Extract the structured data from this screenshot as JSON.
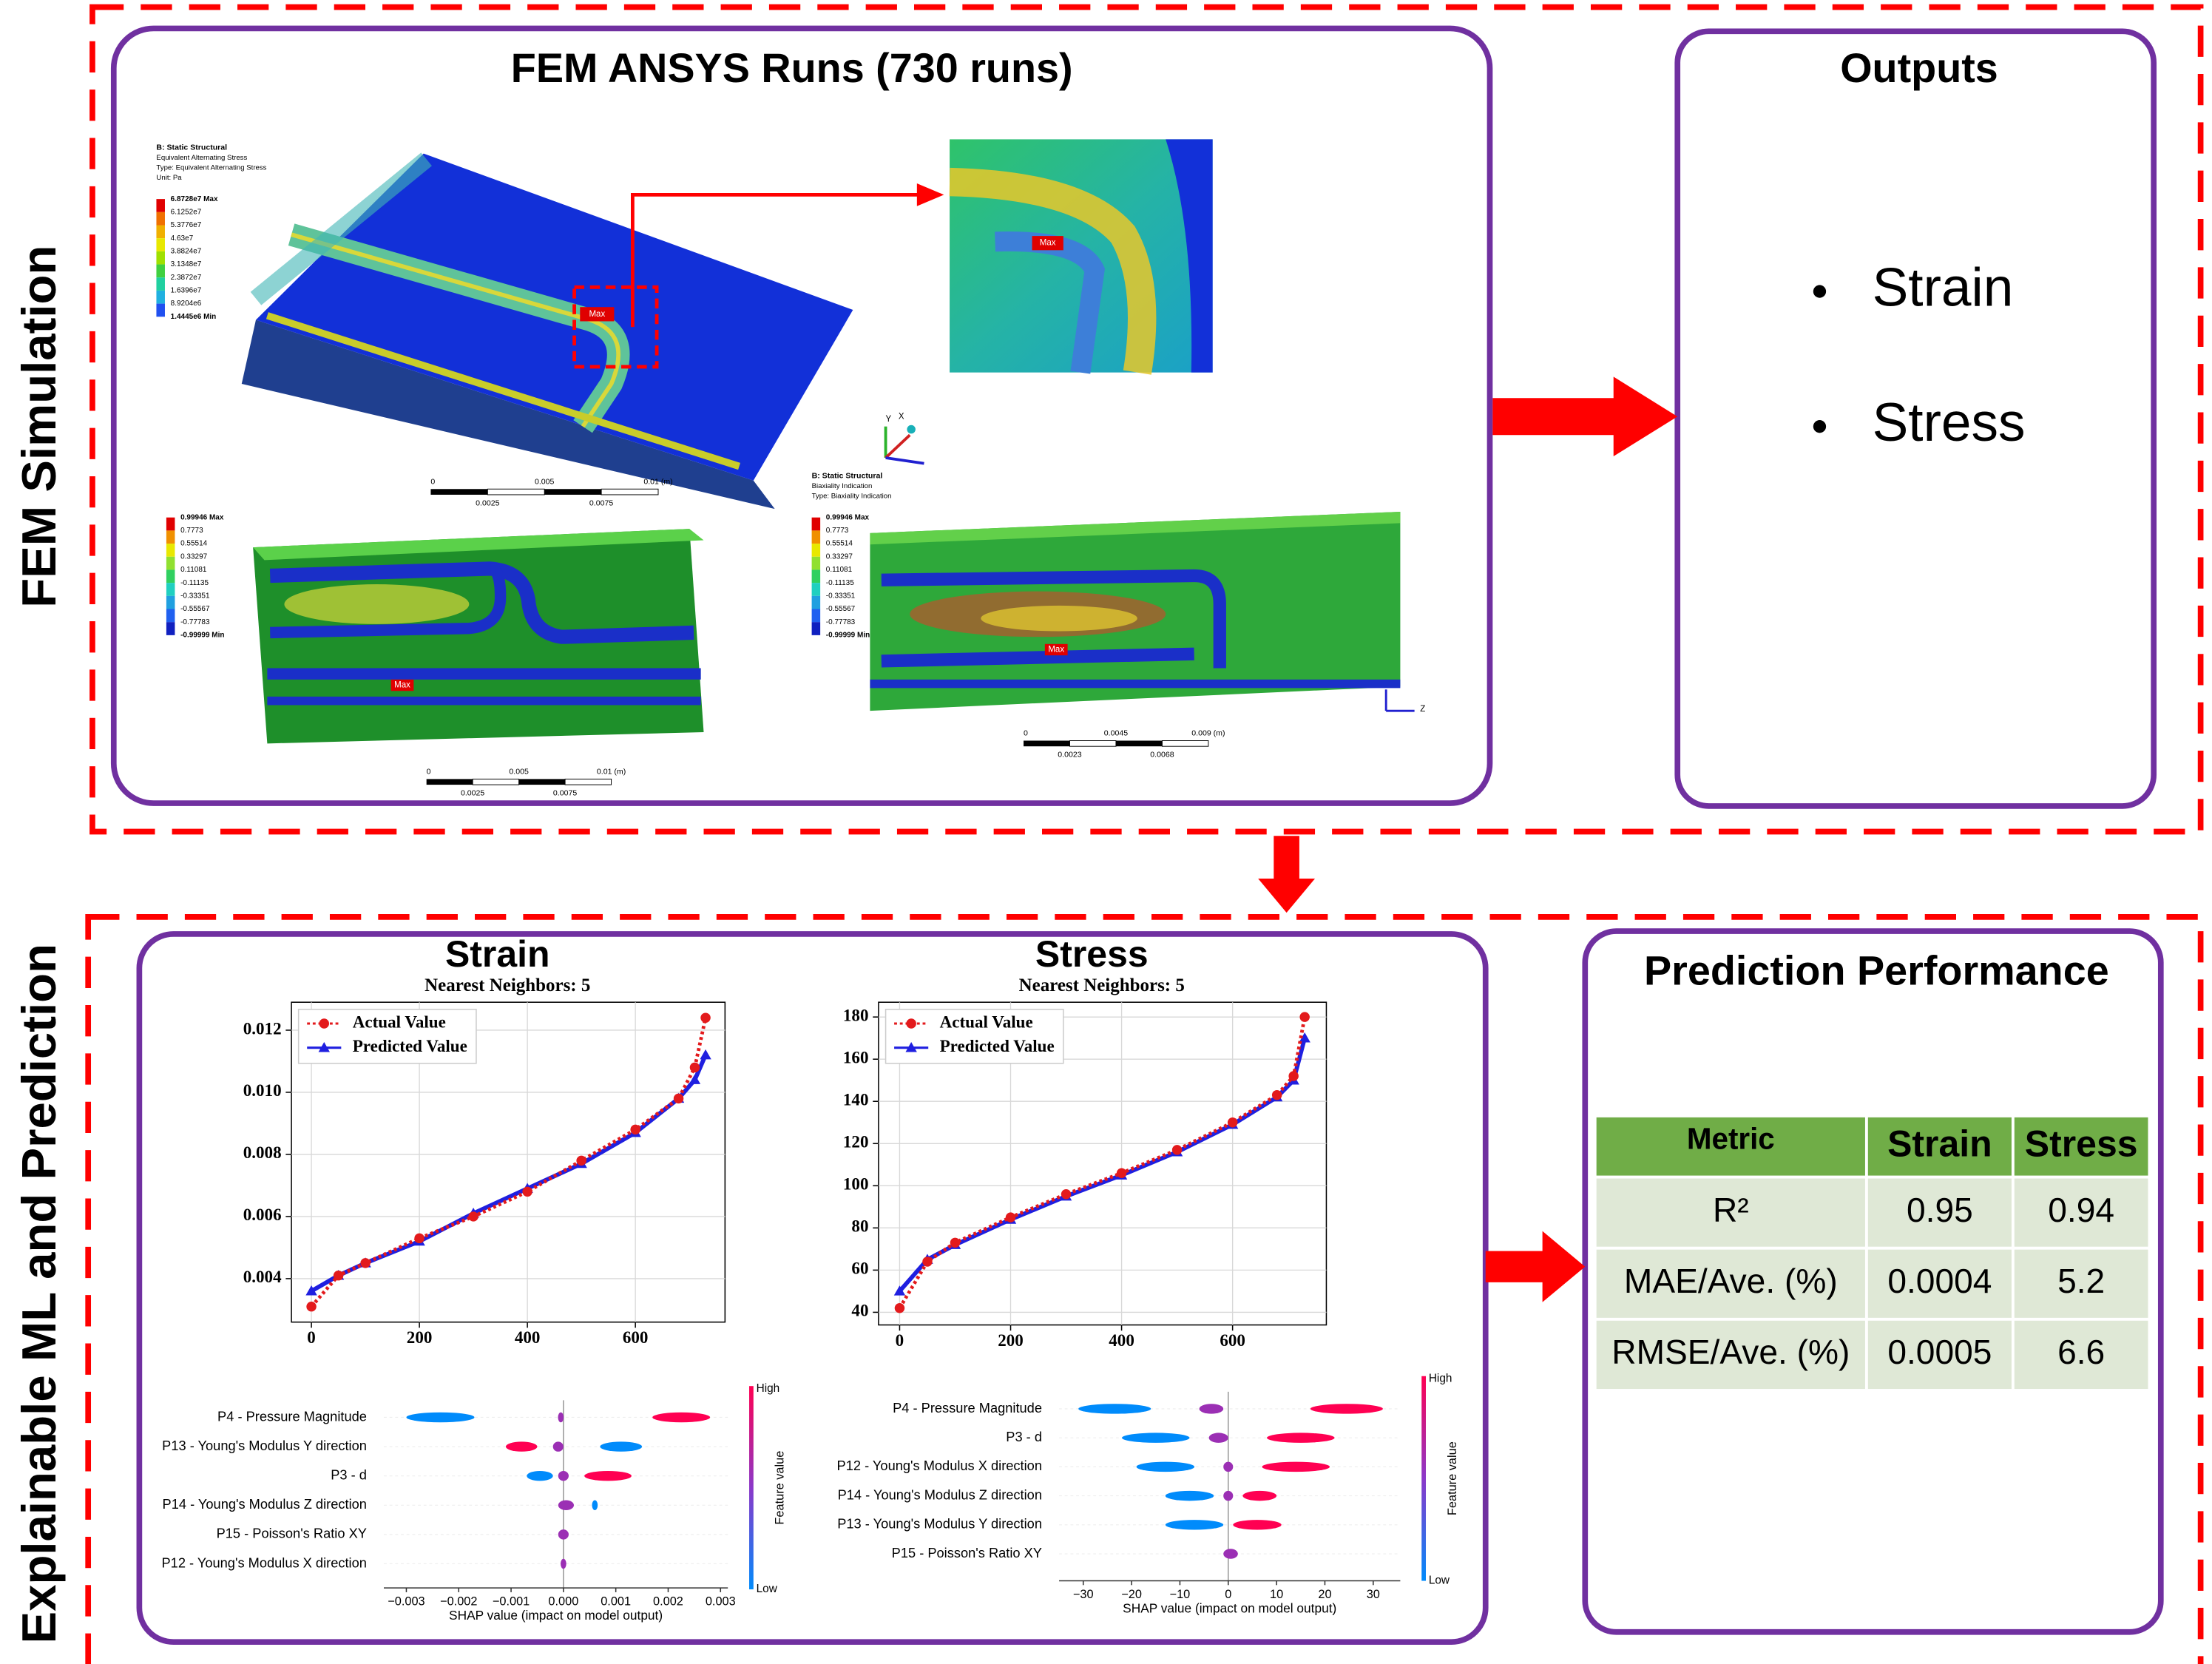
{
  "side_labels": [
    "FEM Simulation",
    "Explainable ML and Prediction"
  ],
  "fem": {
    "title": "FEM ANSYS Runs (730 runs)",
    "max_label": "Max",
    "stress_view": {
      "header": [
        "B: Static Structural",
        "Equivalent Alternating Stress",
        "Type: Equivalent Alternating Stress",
        "Unit: Pa"
      ],
      "legend": [
        "6.8728e7 Max",
        "6.1252e7",
        "5.3776e7",
        "4.63e7",
        "3.8824e7",
        "3.1348e7",
        "2.3872e7",
        "1.6396e7",
        "8.9204e6",
        "1.4445e6 Min"
      ],
      "scale": [
        "0",
        "0.005",
        "0.01 (m)",
        "0.0025",
        "0.0075"
      ]
    },
    "biaxiality_left": {
      "legend": [
        "0.99946 Max",
        "0.7773",
        "0.55514",
        "0.33297",
        "0.11081",
        "-0.11135",
        "-0.33351",
        "-0.55567",
        "-0.77783",
        "-0.99999 Min"
      ],
      "scale": [
        "0",
        "0.005",
        "0.01 (m)",
        "0.0025",
        "0.0075"
      ]
    },
    "biaxiality_right": {
      "header": [
        "B: Static Structural",
        "Biaxiality Indication",
        "Type: Biaxiality Indication"
      ],
      "legend": [
        "0.99946 Max",
        "0.7773",
        "0.55514",
        "0.33297",
        "0.11081",
        "-0.11135",
        "-0.33351",
        "-0.55567",
        "-0.77783",
        "-0.99999 Min"
      ],
      "scale": [
        "0",
        "0.0045",
        "0.009 (m)",
        "0.0023",
        "0.0068"
      ]
    },
    "triad": [
      "Y",
      "X",
      "Z"
    ]
  },
  "outputs": {
    "title": "Outputs",
    "items": [
      "Strain",
      "Stress"
    ]
  },
  "charts": [
    {
      "type": "line",
      "title": "Strain",
      "subtitle": "Nearest Neighbors: 5",
      "x": [
        0,
        50,
        100,
        200,
        300,
        400,
        500,
        600,
        680,
        710,
        730
      ],
      "series": [
        {
          "name": "Actual Value",
          "color": "#e31a1c",
          "values": [
            0.0031,
            0.0041,
            0.0045,
            0.0053,
            0.006,
            0.0068,
            0.0078,
            0.0088,
            0.0098,
            0.0108,
            0.0124
          ]
        },
        {
          "name": "Predicted Value",
          "color": "#1f1fe0",
          "values": [
            0.0036,
            0.0041,
            0.0045,
            0.0052,
            0.0061,
            0.0069,
            0.0077,
            0.0087,
            0.0098,
            0.0104,
            0.0112
          ]
        }
      ],
      "xlim": [
        -37,
        766
      ],
      "xticks": [
        0,
        200,
        400,
        600
      ],
      "ylim": [
        0.0026,
        0.0129
      ],
      "yticks": [
        0.004,
        0.006,
        0.008,
        {
          "value": 0.01,
          "label": "0.010"
        },
        0.012
      ],
      "grid": true,
      "legend": "upper left"
    },
    {
      "type": "line",
      "title": "Stress",
      "subtitle": "Nearest Neighbors: 5",
      "x": [
        0,
        50,
        100,
        200,
        300,
        400,
        500,
        600,
        680,
        710,
        730
      ],
      "series": [
        {
          "name": "Actual Value",
          "color": "#e31a1c",
          "values": [
            42,
            64,
            73,
            85,
            96,
            106,
            117,
            130,
            143,
            152,
            180
          ]
        },
        {
          "name": "Predicted Value",
          "color": "#1f1fe0",
          "values": [
            50,
            65,
            72,
            84,
            95,
            105,
            116,
            129,
            142,
            150,
            170
          ]
        }
      ],
      "xlim": [
        -38,
        769
      ],
      "xticks": [
        0,
        200,
        400,
        600
      ],
      "ylim": [
        34,
        187
      ],
      "yticks": [
        40,
        60,
        80,
        100,
        120,
        140,
        160,
        180
      ],
      "grid": true,
      "legend": "upper left"
    }
  ],
  "shap": [
    {
      "type": "shap",
      "xlabel": "SHAP value (impact on model output)",
      "xlim": [
        -0.00343,
        0.00314
      ],
      "xticks": [
        {
          "value": -0.003,
          "label": "−0.003"
        },
        {
          "value": -0.002,
          "label": "−0.002"
        },
        {
          "value": -0.001,
          "label": "−0.001"
        },
        {
          "value": 0,
          "label": "0.000"
        },
        {
          "value": 0.001,
          "label": "0.001"
        },
        {
          "value": 0.002,
          "label": "0.002"
        },
        {
          "value": 0.003,
          "label": "0.003"
        }
      ],
      "colorbar": {
        "high": "High",
        "low": "Low",
        "label": "Feature value"
      },
      "features": [
        {
          "name": "P4 - Pressure Magnitude",
          "clusters": [
            {
              "from": -0.003,
              "to": -0.0017,
              "color": "#008bfb"
            },
            {
              "from": -0.0001,
              "to": 0,
              "color": "#9b2fb4"
            },
            {
              "from": 0.0017,
              "to": 0.0028,
              "color": "#ff0052"
            }
          ]
        },
        {
          "name": "P13 - Young's Modulus Y direction",
          "clusters": [
            {
              "from": -0.0011,
              "to": -0.0005,
              "color": "#ff0052"
            },
            {
              "from": -0.0002,
              "to": 0,
              "color": "#9b2fb4"
            },
            {
              "from": 0.0007,
              "to": 0.0015,
              "color": "#008bfb"
            }
          ]
        },
        {
          "name": "P3 - d",
          "clusters": [
            {
              "from": -0.0007,
              "to": -0.0002,
              "color": "#008bfb"
            },
            {
              "from": -0.0001,
              "to": 0.0001,
              "color": "#9b2fb4"
            },
            {
              "from": 0.0004,
              "to": 0.0013,
              "color": "#ff0052"
            }
          ]
        },
        {
          "name": "P14 - Young's Modulus Z direction",
          "clusters": [
            {
              "from": -0.0001,
              "to": 0.0002,
              "color": "#9b2fb4"
            },
            {
              "from": 0.0006,
              "to": 0.0006,
              "color": "#008bfb"
            }
          ]
        },
        {
          "name": "P15 - Poisson's Ratio XY",
          "clusters": [
            {
              "from": -0.0001,
              "to": 0.0001,
              "color": "#9b2fb4"
            }
          ]
        },
        {
          "name": "P12 - Young's Modulus X direction",
          "clusters": [
            {
              "from": 0,
              "to": 0,
              "color": "#9b2fb4"
            }
          ]
        }
      ]
    },
    {
      "type": "shap",
      "xlabel": "SHAP value (impact on model output)",
      "xlim": [
        -35,
        35.6
      ],
      "xticks": [
        {
          "value": -30,
          "label": "−30"
        },
        {
          "value": -20,
          "label": "−20"
        },
        {
          "value": -10,
          "label": "−10"
        },
        0,
        10,
        20,
        30
      ],
      "colorbar": {
        "high": "High",
        "low": "Low",
        "label": "Feature value"
      },
      "features": [
        {
          "name": "P4 - Pressure Magnitude",
          "clusters": [
            {
              "from": -31,
              "to": -16,
              "color": "#008bfb"
            },
            {
              "from": -6,
              "to": -1,
              "color": "#9b2fb4"
            },
            {
              "from": 17,
              "to": 32,
              "color": "#ff0052"
            }
          ]
        },
        {
          "name": "P3 - d",
          "clusters": [
            {
              "from": -22,
              "to": -8,
              "color": "#008bfb"
            },
            {
              "from": -4,
              "to": 0,
              "color": "#9b2fb4"
            },
            {
              "from": 8,
              "to": 22,
              "color": "#ff0052"
            }
          ]
        },
        {
          "name": "P12 - Young's Modulus X direction",
          "clusters": [
            {
              "from": -19,
              "to": -7,
              "color": "#008bfb"
            },
            {
              "from": -1,
              "to": 1,
              "color": "#9b2fb4"
            },
            {
              "from": 7,
              "to": 21,
              "color": "#ff0052"
            }
          ]
        },
        {
          "name": "P14 - Young's Modulus Z direction",
          "clusters": [
            {
              "from": -13,
              "to": -3,
              "color": "#008bfb"
            },
            {
              "from": -1,
              "to": 1,
              "color": "#9b2fb4"
            },
            {
              "from": 3,
              "to": 10,
              "color": "#ff0052"
            }
          ]
        },
        {
          "name": "P13 - Young's Modulus Y direction",
          "clusters": [
            {
              "from": -13,
              "to": -1,
              "color": "#008bfb"
            },
            {
              "from": 1,
              "to": 11,
              "color": "#ff0052"
            }
          ]
        },
        {
          "name": "P15 - Poisson's Ratio XY",
          "clusters": [
            {
              "from": -1,
              "to": 2,
              "color": "#9b2fb4"
            }
          ]
        }
      ]
    }
  ],
  "performance": {
    "title": "Prediction Performance",
    "table": {
      "header": [
        "Metric",
        "Strain",
        "Stress"
      ],
      "rows": [
        [
          "R²",
          "0.95",
          "0.94"
        ],
        [
          "MAE/Ave. (%)",
          "0.0004",
          "5.2"
        ],
        [
          "RMSE/Ave. (%)",
          "0.0005",
          "6.6"
        ]
      ]
    }
  }
}
